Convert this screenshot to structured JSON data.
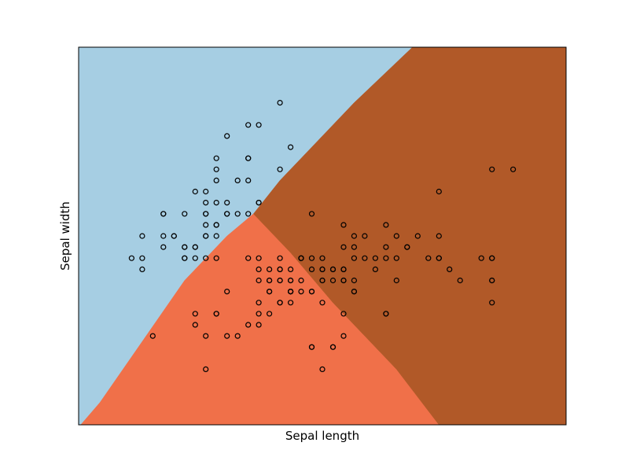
{
  "chart_data": {
    "type": "scatter",
    "title": "",
    "xlabel": "Sepal length",
    "ylabel": "Sepal width",
    "xlim": [
      3.8,
      8.4
    ],
    "ylim": [
      1.5,
      4.9
    ],
    "xticks": [],
    "yticks": [],
    "grid": false,
    "legend": "none",
    "colors": {
      "region_0": "#a6cee3",
      "region_1": "#f07049",
      "region_2": "#b15928",
      "point_edge": "#000000"
    },
    "decision_regions": [
      {
        "class": 0,
        "color": "#a6cee3",
        "polygon": [
          [
            3.8,
            1.5
          ],
          [
            3.8,
            4.9
          ],
          [
            6.95,
            4.9
          ],
          [
            6.4,
            4.4
          ],
          [
            6.0,
            4.0
          ],
          [
            5.7,
            3.7
          ],
          [
            5.45,
            3.4
          ],
          [
            5.2,
            3.2
          ],
          [
            4.8,
            2.8
          ],
          [
            4.0,
            1.7
          ],
          [
            3.82,
            1.5
          ]
        ]
      },
      {
        "class": 1,
        "color": "#f07049",
        "polygon": [
          [
            3.82,
            1.5
          ],
          [
            4.0,
            1.7
          ],
          [
            4.8,
            2.8
          ],
          [
            5.2,
            3.2
          ],
          [
            5.45,
            3.4
          ],
          [
            5.8,
            3.05
          ],
          [
            6.2,
            2.6
          ],
          [
            6.8,
            2.0
          ],
          [
            7.2,
            1.5
          ]
        ]
      },
      {
        "class": 2,
        "color": "#b15928",
        "polygon": [
          [
            7.2,
            1.5
          ],
          [
            6.8,
            2.0
          ],
          [
            6.2,
            2.6
          ],
          [
            5.8,
            3.05
          ],
          [
            5.45,
            3.4
          ],
          [
            5.7,
            3.7
          ],
          [
            6.0,
            4.0
          ],
          [
            6.4,
            4.4
          ],
          [
            6.95,
            4.9
          ],
          [
            8.4,
            4.9
          ],
          [
            8.4,
            1.5
          ]
        ]
      }
    ],
    "series": [
      {
        "x": [
          5.7,
          5.4,
          5.8,
          5.5,
          5.2,
          5.1,
          5.1,
          5.4,
          5.0,
          5.1,
          5.2,
          5.0,
          4.9,
          5.1,
          5.4,
          5.3,
          5.5,
          5.0,
          5.1,
          5.3,
          4.8,
          5.0,
          5.1,
          5.0,
          5.1,
          4.9,
          4.4,
          4.8,
          4.6,
          5.0,
          4.4,
          4.5,
          4.6,
          4.7,
          4.8,
          5.0,
          4.9,
          5.2,
          5.4,
          4.8,
          4.6,
          4.9,
          4.4,
          4.3,
          4.6,
          5.7,
          5.5,
          5.4,
          5.2,
          4.8,
          5.1,
          5.0,
          4.7
        ],
        "y": [
          4.4,
          4.2,
          4.0,
          4.2,
          4.1,
          3.9,
          3.8,
          3.9,
          3.6,
          3.5,
          3.4,
          3.5,
          3.6,
          3.7,
          3.7,
          3.7,
          3.5,
          3.4,
          3.3,
          3.4,
          3.4,
          3.3,
          3.2,
          3.2,
          3.0,
          3.0,
          2.9,
          3.0,
          3.1,
          3.2,
          3.2,
          2.3,
          3.4,
          3.2,
          3.1,
          3.0,
          3.1,
          3.4,
          3.4,
          3.1,
          3.2,
          3.1,
          3.0,
          3.0,
          3.4,
          3.8,
          3.5,
          3.9,
          3.5,
          3.0,
          3.3,
          3.4,
          3.2
        ]
      },
      {
        "x": [
          6.0,
          5.7,
          5.5,
          5.5,
          5.6,
          5.7,
          5.8,
          5.9,
          6.0,
          6.1,
          6.2,
          6.3,
          5.4,
          5.5,
          5.6,
          5.7,
          5.8,
          5.9,
          5.6,
          5.6,
          5.7,
          5.8,
          5.2,
          5.0,
          5.5,
          5.5,
          5.5,
          5.4,
          5.3,
          5.2,
          5.0,
          4.9,
          5.1,
          5.1,
          6.0,
          6.2,
          6.3,
          6.4,
          6.0,
          6.1,
          6.2,
          5.8,
          5.6,
          6.3,
          5.7,
          5.8,
          6.0,
          6.1,
          5.6,
          5.7,
          5.8,
          4.9
        ],
        "y": [
          3.4,
          3.0,
          3.0,
          2.9,
          2.9,
          2.9,
          2.9,
          3.0,
          2.9,
          2.9,
          2.9,
          2.9,
          3.0,
          2.8,
          2.8,
          2.8,
          2.8,
          2.8,
          2.7,
          2.7,
          2.6,
          2.6,
          2.7,
          2.3,
          2.6,
          2.5,
          2.4,
          2.4,
          2.3,
          2.3,
          2.0,
          2.5,
          2.5,
          2.5,
          2.2,
          2.2,
          2.3,
          2.7,
          2.7,
          2.8,
          2.2,
          2.7,
          2.5,
          2.5,
          2.6,
          2.7,
          2.2,
          2.0,
          2.8,
          2.9,
          2.7,
          2.4
        ]
      },
      {
        "x": [
          7.7,
          7.9,
          6.6,
          7.2,
          7.7,
          5.7,
          6.1,
          6.3,
          6.4,
          6.4,
          6.5,
          6.7,
          6.8,
          6.9,
          7.2,
          7.7,
          6.3,
          6.4,
          6.5,
          6.7,
          6.8,
          6.9,
          7.0,
          7.1,
          7.2,
          7.3,
          7.6,
          7.7,
          7.2,
          7.4,
          7.7,
          6.7,
          6.4,
          6.3,
          6.2,
          6.1,
          6.0,
          5.9,
          5.8,
          6.3,
          5.9,
          6.0,
          5.8,
          5.9,
          6.1,
          6.3,
          6.4,
          6.6,
          6.7,
          6.8,
          6.1,
          6.2,
          6.7,
          7.7
        ],
        "y": [
          3.8,
          3.8,
          3.0,
          3.6,
          3.0,
          2.8,
          3.0,
          3.1,
          3.1,
          3.2,
          3.2,
          3.1,
          3.2,
          3.1,
          3.2,
          3.0,
          3.3,
          3.0,
          3.0,
          3.0,
          3.0,
          3.1,
          3.2,
          3.0,
          3.0,
          2.9,
          3.0,
          2.8,
          3.0,
          2.8,
          2.6,
          3.3,
          2.8,
          2.8,
          2.8,
          2.6,
          2.7,
          2.7,
          2.7,
          2.9,
          3.0,
          3.0,
          2.8,
          3.0,
          2.9,
          2.8,
          2.7,
          2.9,
          2.5,
          2.8,
          2.8,
          2.9,
          2.5,
          2.8
        ]
      }
    ]
  }
}
